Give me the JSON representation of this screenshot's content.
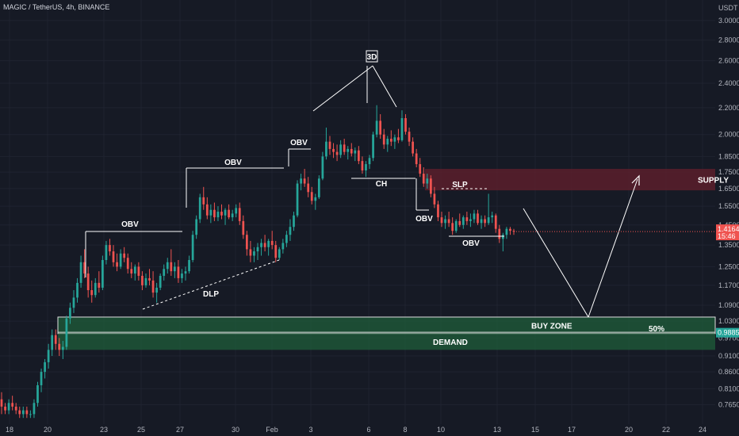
{
  "header": {
    "symbol_title": "MAGIC / TetherUS, 4h, BINANCE",
    "currency": "USDT"
  },
  "colors": {
    "background": "#161a25",
    "up": "#26a69a",
    "down": "#ef5350",
    "grid": "#1f2330",
    "annotation": "#ffffff",
    "demand_fill": "#1f5e3a",
    "supply_fill": "#5a1f2c"
  },
  "chart_data": {
    "type": "candlestick",
    "y_scale": "log",
    "ylim": [
      0.73,
      3.1
    ],
    "price_ticks": [
      "3.0000",
      "2.8000",
      "2.6000",
      "2.4000",
      "2.2000",
      "2.0000",
      "1.8500",
      "1.7500",
      "1.6500",
      "1.5500",
      "1.4500",
      "1.3500",
      "1.2500",
      "1.1700",
      "1.0900",
      "1.0300",
      "0.9700",
      "0.9100",
      "0.8600",
      "0.8100",
      "0.7650"
    ],
    "date_ticks": [
      "18",
      "20",
      "23",
      "25",
      "27",
      "30",
      "Feb",
      "3",
      "6",
      "8",
      "10",
      "13",
      "15",
      "17",
      "20",
      "22",
      "24"
    ],
    "current_price": {
      "value": "1.4164",
      "countdown": "15:46"
    },
    "level_marker": "0.9885",
    "zones": [
      {
        "name": "SUPPLY",
        "label": "SUPPLY",
        "high": 1.77,
        "low": 1.64
      },
      {
        "name": "BUY ZONE",
        "label": "BUY ZONE",
        "high": 1.045,
        "low": 0.985
      },
      {
        "name": "DEMAND",
        "label": "DEMAND",
        "high": 0.985,
        "low": 0.93
      }
    ],
    "fifty_percent": {
      "label": "50%",
      "value": 0.99
    },
    "annotations": [
      "OBV",
      "OBV",
      "OBV",
      "OBV",
      "OBV",
      "DLP",
      "3D",
      "CH",
      "SLP"
    ],
    "candles": [
      {
        "o": 0.78,
        "h": 0.8,
        "l": 0.74,
        "c": 0.76
      },
      {
        "o": 0.76,
        "h": 0.77,
        "l": 0.74,
        "c": 0.75
      },
      {
        "o": 0.75,
        "h": 0.78,
        "l": 0.74,
        "c": 0.77
      },
      {
        "o": 0.77,
        "h": 0.79,
        "l": 0.75,
        "c": 0.76
      },
      {
        "o": 0.76,
        "h": 0.77,
        "l": 0.74,
        "c": 0.75
      },
      {
        "o": 0.75,
        "h": 0.76,
        "l": 0.73,
        "c": 0.74
      },
      {
        "o": 0.74,
        "h": 0.76,
        "l": 0.73,
        "c": 0.75
      },
      {
        "o": 0.75,
        "h": 0.76,
        "l": 0.73,
        "c": 0.74
      },
      {
        "o": 0.74,
        "h": 0.75,
        "l": 0.73,
        "c": 0.74
      },
      {
        "o": 0.74,
        "h": 0.78,
        "l": 0.73,
        "c": 0.77
      },
      {
        "o": 0.77,
        "h": 0.83,
        "l": 0.76,
        "c": 0.82
      },
      {
        "o": 0.82,
        "h": 0.87,
        "l": 0.8,
        "c": 0.86
      },
      {
        "o": 0.86,
        "h": 0.9,
        "l": 0.84,
        "c": 0.89
      },
      {
        "o": 0.89,
        "h": 0.95,
        "l": 0.87,
        "c": 0.93
      },
      {
        "o": 0.93,
        "h": 1.0,
        "l": 0.91,
        "c": 0.98
      },
      {
        "o": 0.98,
        "h": 1.0,
        "l": 0.93,
        "c": 0.95
      },
      {
        "o": 0.95,
        "h": 0.97,
        "l": 0.91,
        "c": 0.93
      },
      {
        "o": 0.93,
        "h": 0.96,
        "l": 0.9,
        "c": 0.94
      },
      {
        "o": 0.94,
        "h": 1.05,
        "l": 0.93,
        "c": 1.04
      },
      {
        "o": 1.04,
        "h": 1.1,
        "l": 1.02,
        "c": 1.08
      },
      {
        "o": 1.08,
        "h": 1.15,
        "l": 1.06,
        "c": 1.12
      },
      {
        "o": 1.12,
        "h": 1.2,
        "l": 1.1,
        "c": 1.18
      },
      {
        "o": 1.18,
        "h": 1.3,
        "l": 1.16,
        "c": 1.27
      },
      {
        "o": 1.27,
        "h": 1.33,
        "l": 1.2,
        "c": 1.22
      },
      {
        "o": 1.22,
        "h": 1.25,
        "l": 1.12,
        "c": 1.15
      },
      {
        "o": 1.15,
        "h": 1.19,
        "l": 1.1,
        "c": 1.13
      },
      {
        "o": 1.13,
        "h": 1.2,
        "l": 1.12,
        "c": 1.18
      },
      {
        "o": 1.18,
        "h": 1.23,
        "l": 1.14,
        "c": 1.16
      },
      {
        "o": 1.16,
        "h": 1.3,
        "l": 1.15,
        "c": 1.28
      },
      {
        "o": 1.28,
        "h": 1.37,
        "l": 1.26,
        "c": 1.35
      },
      {
        "o": 1.35,
        "h": 1.38,
        "l": 1.3,
        "c": 1.32
      },
      {
        "o": 1.32,
        "h": 1.35,
        "l": 1.25,
        "c": 1.27
      },
      {
        "o": 1.27,
        "h": 1.31,
        "l": 1.23,
        "c": 1.25
      },
      {
        "o": 1.25,
        "h": 1.33,
        "l": 1.24,
        "c": 1.31
      },
      {
        "o": 1.31,
        "h": 1.34,
        "l": 1.27,
        "c": 1.29
      },
      {
        "o": 1.29,
        "h": 1.31,
        "l": 1.22,
        "c": 1.24
      },
      {
        "o": 1.24,
        "h": 1.27,
        "l": 1.2,
        "c": 1.22
      },
      {
        "o": 1.22,
        "h": 1.26,
        "l": 1.19,
        "c": 1.25
      },
      {
        "o": 1.25,
        "h": 1.27,
        "l": 1.19,
        "c": 1.21
      },
      {
        "o": 1.21,
        "h": 1.23,
        "l": 1.15,
        "c": 1.17
      },
      {
        "o": 1.17,
        "h": 1.22,
        "l": 1.16,
        "c": 1.2
      },
      {
        "o": 1.2,
        "h": 1.24,
        "l": 1.17,
        "c": 1.19
      },
      {
        "o": 1.19,
        "h": 1.23,
        "l": 1.12,
        "c": 1.14
      },
      {
        "o": 1.14,
        "h": 1.18,
        "l": 1.1,
        "c": 1.16
      },
      {
        "o": 1.16,
        "h": 1.22,
        "l": 1.15,
        "c": 1.21
      },
      {
        "o": 1.21,
        "h": 1.26,
        "l": 1.19,
        "c": 1.24
      },
      {
        "o": 1.24,
        "h": 1.29,
        "l": 1.22,
        "c": 1.27
      },
      {
        "o": 1.27,
        "h": 1.33,
        "l": 1.21,
        "c": 1.23
      },
      {
        "o": 1.23,
        "h": 1.27,
        "l": 1.2,
        "c": 1.25
      },
      {
        "o": 1.25,
        "h": 1.28,
        "l": 1.18,
        "c": 1.2
      },
      {
        "o": 1.2,
        "h": 1.24,
        "l": 1.18,
        "c": 1.22
      },
      {
        "o": 1.22,
        "h": 1.25,
        "l": 1.19,
        "c": 1.23
      },
      {
        "o": 1.23,
        "h": 1.3,
        "l": 1.22,
        "c": 1.28
      },
      {
        "o": 1.28,
        "h": 1.42,
        "l": 1.27,
        "c": 1.4
      },
      {
        "o": 1.4,
        "h": 1.5,
        "l": 1.38,
        "c": 1.48
      },
      {
        "o": 1.48,
        "h": 1.62,
        "l": 1.46,
        "c": 1.6
      },
      {
        "o": 1.6,
        "h": 1.66,
        "l": 1.53,
        "c": 1.56
      },
      {
        "o": 1.56,
        "h": 1.6,
        "l": 1.48,
        "c": 1.5
      },
      {
        "o": 1.5,
        "h": 1.56,
        "l": 1.46,
        "c": 1.53
      },
      {
        "o": 1.53,
        "h": 1.57,
        "l": 1.47,
        "c": 1.49
      },
      {
        "o": 1.49,
        "h": 1.55,
        "l": 1.47,
        "c": 1.52
      },
      {
        "o": 1.52,
        "h": 1.56,
        "l": 1.48,
        "c": 1.5
      },
      {
        "o": 1.5,
        "h": 1.54,
        "l": 1.45,
        "c": 1.53
      },
      {
        "o": 1.53,
        "h": 1.56,
        "l": 1.48,
        "c": 1.49
      },
      {
        "o": 1.49,
        "h": 1.53,
        "l": 1.47,
        "c": 1.51
      },
      {
        "o": 1.51,
        "h": 1.56,
        "l": 1.49,
        "c": 1.54
      },
      {
        "o": 1.54,
        "h": 1.57,
        "l": 1.45,
        "c": 1.47
      },
      {
        "o": 1.47,
        "h": 1.5,
        "l": 1.38,
        "c": 1.4
      },
      {
        "o": 1.4,
        "h": 1.42,
        "l": 1.3,
        "c": 1.33
      },
      {
        "o": 1.33,
        "h": 1.37,
        "l": 1.27,
        "c": 1.3
      },
      {
        "o": 1.3,
        "h": 1.34,
        "l": 1.27,
        "c": 1.32
      },
      {
        "o": 1.32,
        "h": 1.36,
        "l": 1.28,
        "c": 1.34
      },
      {
        "o": 1.34,
        "h": 1.38,
        "l": 1.3,
        "c": 1.36
      },
      {
        "o": 1.36,
        "h": 1.4,
        "l": 1.32,
        "c": 1.34
      },
      {
        "o": 1.34,
        "h": 1.38,
        "l": 1.3,
        "c": 1.37
      },
      {
        "o": 1.37,
        "h": 1.42,
        "l": 1.33,
        "c": 1.35
      },
      {
        "o": 1.35,
        "h": 1.37,
        "l": 1.27,
        "c": 1.29
      },
      {
        "o": 1.29,
        "h": 1.34,
        "l": 1.28,
        "c": 1.33
      },
      {
        "o": 1.33,
        "h": 1.38,
        "l": 1.31,
        "c": 1.36
      },
      {
        "o": 1.36,
        "h": 1.42,
        "l": 1.34,
        "c": 1.4
      },
      {
        "o": 1.4,
        "h": 1.48,
        "l": 1.37,
        "c": 1.44
      },
      {
        "o": 1.44,
        "h": 1.52,
        "l": 1.42,
        "c": 1.5
      },
      {
        "o": 1.5,
        "h": 1.7,
        "l": 1.49,
        "c": 1.68
      },
      {
        "o": 1.68,
        "h": 1.74,
        "l": 1.64,
        "c": 1.71
      },
      {
        "o": 1.71,
        "h": 1.77,
        "l": 1.66,
        "c": 1.68
      },
      {
        "o": 1.68,
        "h": 1.72,
        "l": 1.6,
        "c": 1.63
      },
      {
        "o": 1.63,
        "h": 1.66,
        "l": 1.56,
        "c": 1.58
      },
      {
        "o": 1.58,
        "h": 1.62,
        "l": 1.53,
        "c": 1.6
      },
      {
        "o": 1.6,
        "h": 1.73,
        "l": 1.59,
        "c": 1.71
      },
      {
        "o": 1.71,
        "h": 1.88,
        "l": 1.7,
        "c": 1.85
      },
      {
        "o": 1.85,
        "h": 2.05,
        "l": 1.83,
        "c": 1.95
      },
      {
        "o": 1.95,
        "h": 1.99,
        "l": 1.86,
        "c": 1.9
      },
      {
        "o": 1.9,
        "h": 1.94,
        "l": 1.84,
        "c": 1.88
      },
      {
        "o": 1.88,
        "h": 1.93,
        "l": 1.82,
        "c": 1.86
      },
      {
        "o": 1.86,
        "h": 1.96,
        "l": 1.84,
        "c": 1.93
      },
      {
        "o": 1.93,
        "h": 1.97,
        "l": 1.86,
        "c": 1.88
      },
      {
        "o": 1.88,
        "h": 1.92,
        "l": 1.83,
        "c": 1.9
      },
      {
        "o": 1.9,
        "h": 1.94,
        "l": 1.85,
        "c": 1.87
      },
      {
        "o": 1.87,
        "h": 1.91,
        "l": 1.82,
        "c": 1.89
      },
      {
        "o": 1.89,
        "h": 1.92,
        "l": 1.8,
        "c": 1.82
      },
      {
        "o": 1.82,
        "h": 1.85,
        "l": 1.74,
        "c": 1.76
      },
      {
        "o": 1.76,
        "h": 1.82,
        "l": 1.72,
        "c": 1.8
      },
      {
        "o": 1.8,
        "h": 1.86,
        "l": 1.77,
        "c": 1.84
      },
      {
        "o": 1.84,
        "h": 2.02,
        "l": 1.82,
        "c": 2.0
      },
      {
        "o": 2.0,
        "h": 2.22,
        "l": 1.98,
        "c": 2.1
      },
      {
        "o": 2.1,
        "h": 2.15,
        "l": 1.97,
        "c": 2.0
      },
      {
        "o": 2.0,
        "h": 2.04,
        "l": 1.9,
        "c": 1.93
      },
      {
        "o": 1.93,
        "h": 1.99,
        "l": 1.88,
        "c": 1.97
      },
      {
        "o": 1.97,
        "h": 2.03,
        "l": 1.92,
        "c": 1.95
      },
      {
        "o": 1.95,
        "h": 2.0,
        "l": 1.9,
        "c": 1.98
      },
      {
        "o": 1.98,
        "h": 2.04,
        "l": 1.94,
        "c": 1.96
      },
      {
        "o": 1.96,
        "h": 2.18,
        "l": 1.95,
        "c": 2.12
      },
      {
        "o": 2.12,
        "h": 2.15,
        "l": 2.0,
        "c": 2.02
      },
      {
        "o": 2.02,
        "h": 2.05,
        "l": 1.92,
        "c": 1.95
      },
      {
        "o": 1.95,
        "h": 1.98,
        "l": 1.85,
        "c": 1.87
      },
      {
        "o": 1.87,
        "h": 1.9,
        "l": 1.78,
        "c": 1.8
      },
      {
        "o": 1.8,
        "h": 1.84,
        "l": 1.72,
        "c": 1.74
      },
      {
        "o": 1.74,
        "h": 1.78,
        "l": 1.66,
        "c": 1.68
      },
      {
        "o": 1.68,
        "h": 1.74,
        "l": 1.65,
        "c": 1.71
      },
      {
        "o": 1.71,
        "h": 1.73,
        "l": 1.6,
        "c": 1.62
      },
      {
        "o": 1.62,
        "h": 1.66,
        "l": 1.54,
        "c": 1.56
      },
      {
        "o": 1.56,
        "h": 1.58,
        "l": 1.47,
        "c": 1.49
      },
      {
        "o": 1.49,
        "h": 1.52,
        "l": 1.44,
        "c": 1.46
      },
      {
        "o": 1.46,
        "h": 1.5,
        "l": 1.43,
        "c": 1.48
      },
      {
        "o": 1.48,
        "h": 1.52,
        "l": 1.44,
        "c": 1.46
      },
      {
        "o": 1.46,
        "h": 1.49,
        "l": 1.4,
        "c": 1.42
      },
      {
        "o": 1.42,
        "h": 1.48,
        "l": 1.41,
        "c": 1.47
      },
      {
        "o": 1.47,
        "h": 1.51,
        "l": 1.44,
        "c": 1.45
      },
      {
        "o": 1.45,
        "h": 1.5,
        "l": 1.43,
        "c": 1.49
      },
      {
        "o": 1.49,
        "h": 1.52,
        "l": 1.45,
        "c": 1.47
      },
      {
        "o": 1.47,
        "h": 1.51,
        "l": 1.44,
        "c": 1.48
      },
      {
        "o": 1.48,
        "h": 1.53,
        "l": 1.46,
        "c": 1.51
      },
      {
        "o": 1.51,
        "h": 1.53,
        "l": 1.45,
        "c": 1.46
      },
      {
        "o": 1.46,
        "h": 1.5,
        "l": 1.43,
        "c": 1.48
      },
      {
        "o": 1.48,
        "h": 1.5,
        "l": 1.44,
        "c": 1.46
      },
      {
        "o": 1.46,
        "h": 1.62,
        "l": 1.45,
        "c": 1.49
      },
      {
        "o": 1.49,
        "h": 1.52,
        "l": 1.46,
        "c": 1.5
      },
      {
        "o": 1.5,
        "h": 1.51,
        "l": 1.41,
        "c": 1.43
      },
      {
        "o": 1.43,
        "h": 1.45,
        "l": 1.36,
        "c": 1.38
      },
      {
        "o": 1.38,
        "h": 1.41,
        "l": 1.32,
        "c": 1.4
      },
      {
        "o": 1.4,
        "h": 1.44,
        "l": 1.38,
        "c": 1.43
      },
      {
        "o": 1.43,
        "h": 1.44,
        "l": 1.4,
        "c": 1.42
      },
      {
        "o": 1.42,
        "h": 1.43,
        "l": 1.4,
        "c": 1.4164
      }
    ]
  }
}
